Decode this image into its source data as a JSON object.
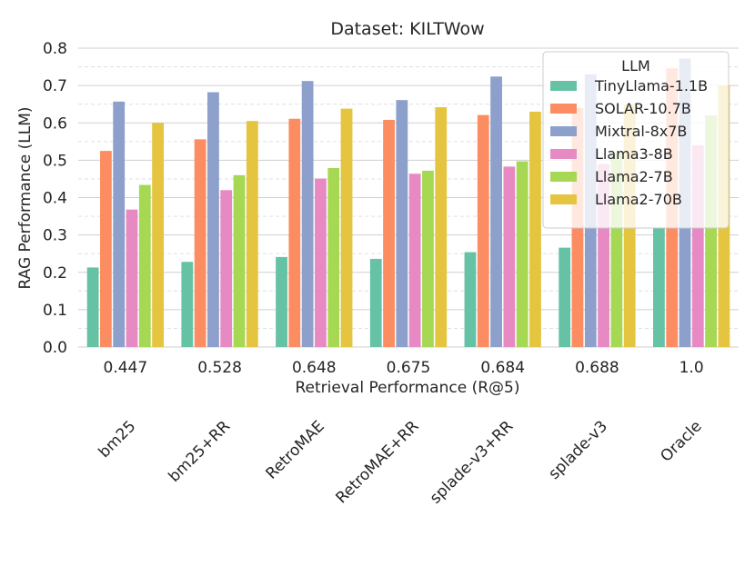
{
  "chart_data": {
    "type": "bar",
    "title": "Dataset: KILTWow",
    "xlabel": "Retrieval Performance (R@5)",
    "ylabel": "RAG Performance (LLM)",
    "ylim": [
      0,
      0.8
    ],
    "yticks": [
      "0.0",
      "0.1",
      "0.2",
      "0.3",
      "0.4",
      "0.5",
      "0.6",
      "0.7",
      "0.8"
    ],
    "categories": [
      "0.447",
      "0.528",
      "0.648",
      "0.675",
      "0.684",
      "0.688",
      "1.0"
    ],
    "retrievers": [
      "bm25",
      "bm25+RR",
      "RetroMAE",
      "RetroMAE+RR",
      "splade-v3+RR",
      "splade-v3",
      "Oracle"
    ],
    "legend_title": "LLM",
    "legend_position": "top-right",
    "grid": true,
    "series": [
      {
        "name": "TinyLlama-1.1B",
        "color": "#66c2a5",
        "values": [
          0.213,
          0.228,
          0.241,
          0.236,
          0.254,
          0.266,
          0.32
        ]
      },
      {
        "name": "SOLAR-10.7B",
        "color": "#fc8d62",
        "values": [
          0.525,
          0.556,
          0.611,
          0.608,
          0.621,
          0.64,
          0.746
        ]
      },
      {
        "name": "Mixtral-8x7B",
        "color": "#8da0cb",
        "values": [
          0.657,
          0.682,
          0.712,
          0.661,
          0.724,
          0.73,
          0.772
        ]
      },
      {
        "name": "Llama3-8B",
        "color": "#e78ac3",
        "values": [
          0.368,
          0.42,
          0.451,
          0.464,
          0.483,
          0.49,
          0.54
        ]
      },
      {
        "name": "Llama2-7B",
        "color": "#a6d854",
        "values": [
          0.434,
          0.46,
          0.479,
          0.472,
          0.497,
          0.52,
          0.62
        ]
      },
      {
        "name": "Llama2-70B",
        "color": "#e5c440",
        "values": [
          0.6,
          0.605,
          0.638,
          0.642,
          0.63,
          0.65,
          0.7
        ]
      }
    ]
  }
}
